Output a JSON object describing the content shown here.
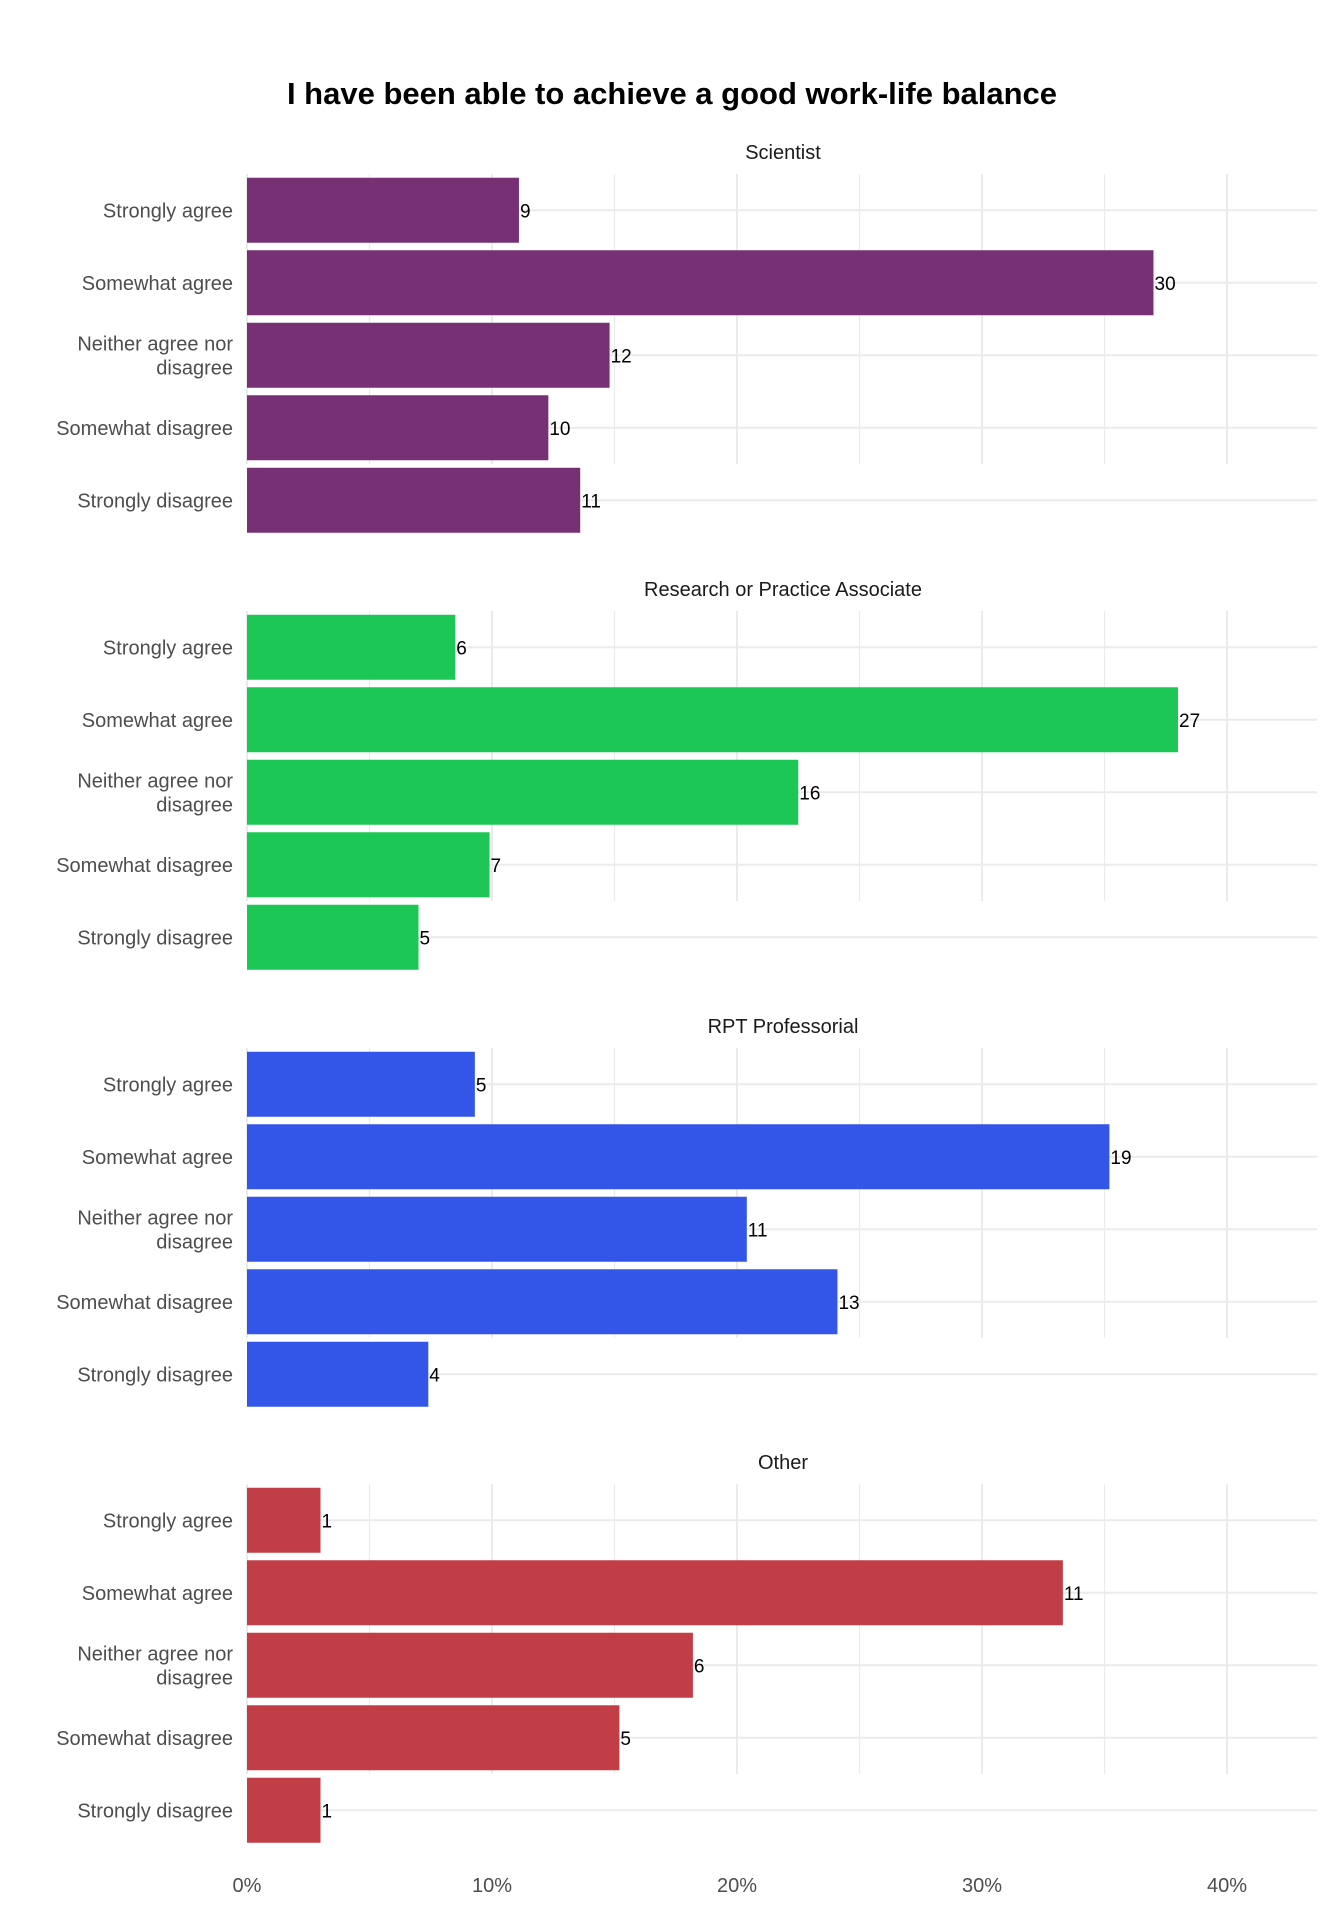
{
  "chart_data": {
    "type": "bar",
    "orientation": "horizontal",
    "title": "I have been able to achieve a good work-life balance",
    "xlabel": "",
    "ylabel": "",
    "xlim": [
      0,
      43.6
    ],
    "x_ticks": [
      {
        "value": 0,
        "label": "0%"
      },
      {
        "value": 10,
        "label": "10%"
      },
      {
        "value": 20,
        "label": "20%"
      },
      {
        "value": 30,
        "label": "30%"
      },
      {
        "value": 40,
        "label": "40%"
      }
    ],
    "grid": true,
    "legend": "none",
    "categories": [
      "Strongly agree",
      "Somewhat agree",
      "Neither agree nor disagree",
      "Somewhat disagree",
      "Strongly disagree"
    ],
    "category_lines": [
      [
        "Strongly agree"
      ],
      [
        "Somewhat agree"
      ],
      [
        "Neither agree nor",
        "disagree"
      ],
      [
        "Somewhat disagree"
      ],
      [
        "Strongly disagree"
      ]
    ],
    "facets": [
      {
        "name": "Scientist",
        "color": "#773073",
        "counts": [
          9,
          30,
          12,
          10,
          11
        ],
        "percent": [
          11.1,
          37.0,
          14.8,
          12.3,
          13.6
        ]
      },
      {
        "name": "Research or Practice Associate",
        "color": "#1DC755",
        "counts": [
          6,
          27,
          16,
          7,
          5
        ],
        "percent": [
          8.5,
          38.0,
          22.5,
          9.9,
          7.0
        ]
      },
      {
        "name": "RPT Professorial",
        "color": "#3355E8",
        "counts": [
          5,
          19,
          11,
          13,
          4
        ],
        "percent": [
          9.3,
          35.2,
          20.4,
          24.1,
          7.4
        ]
      },
      {
        "name": "Other",
        "color": "#C13E46",
        "counts": [
          1,
          11,
          6,
          5,
          1
        ],
        "percent": [
          3.0,
          33.3,
          18.2,
          15.2,
          3.0
        ]
      }
    ]
  }
}
